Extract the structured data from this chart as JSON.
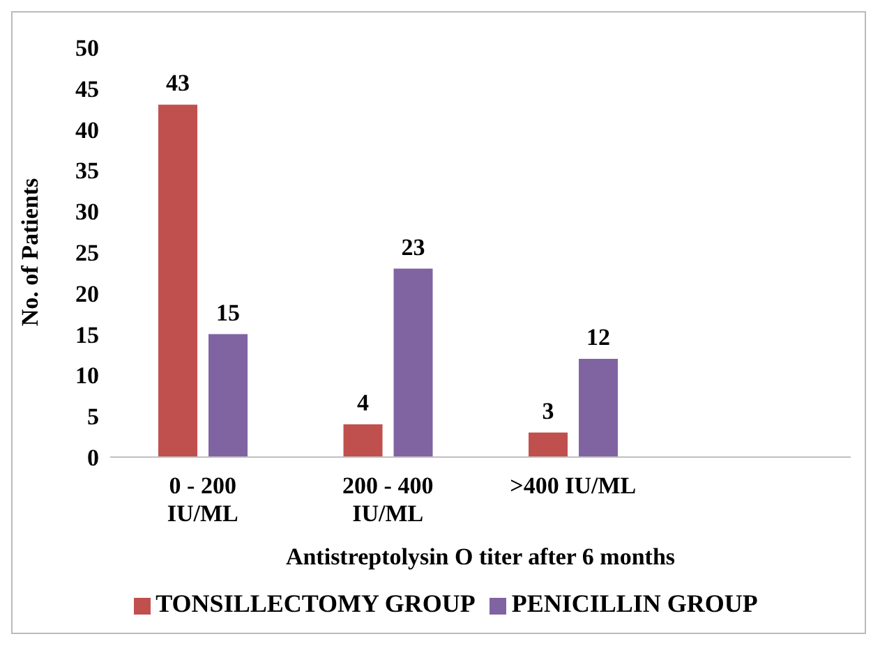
{
  "chart_data": {
    "type": "bar",
    "xlabel": "Antistreptolysin O titer after 6 months",
    "ylabel": "No. of Patients",
    "categories": [
      "0 - 200 IU/ML",
      "200 - 400 IU/ML",
      ">400 IU/ML",
      null
    ],
    "series": [
      {
        "name": "TONSILLECTOMY GROUP",
        "color": "#c0504d",
        "values": [
          43,
          4,
          3,
          null
        ]
      },
      {
        "name": "PENICILLIN GROUP",
        "color": "#8064a2",
        "values": [
          15,
          23,
          12,
          null
        ]
      }
    ],
    "ylim": [
      0,
      50
    ],
    "yticks": [
      0,
      5,
      10,
      15,
      20,
      25,
      30,
      35,
      40,
      45,
      50
    ],
    "grid": false,
    "legend": "bottom",
    "data_labels": true
  }
}
